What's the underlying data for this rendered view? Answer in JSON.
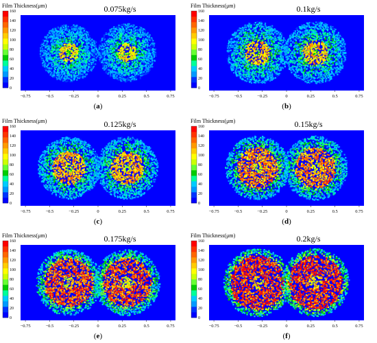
{
  "chart_data": [
    {
      "type": "heatmap",
      "title": "0.075kg/s",
      "caption_letter": "a",
      "colorbar_label": "Film Thickness(μm)",
      "colorbar_ticks": [
        0,
        20,
        40,
        60,
        80,
        100,
        120,
        140,
        160
      ],
      "x_ticks": [
        -0.75,
        -0.5,
        -0.25,
        0,
        0.25,
        0.5,
        0.75
      ],
      "x_tick_labels": [
        "−0.75",
        "−0.5",
        "−0.25",
        "0",
        "0.25",
        "0.5",
        "0.75"
      ],
      "xlim": [
        -0.8,
        0.8
      ],
      "spray_centers": [
        -0.3,
        0.3
      ],
      "spray_radius": 0.3,
      "core_radius": 0.1,
      "core_thickness": 100,
      "edge_thickness": 25
    },
    {
      "type": "heatmap",
      "title": "0.1kg/s",
      "caption_letter": "b",
      "colorbar_label": "Film Thickness(μm)",
      "colorbar_ticks": [
        0,
        20,
        40,
        60,
        80,
        100,
        120,
        140,
        160
      ],
      "x_ticks": [
        -0.75,
        -0.5,
        -0.25,
        0,
        0.25,
        0.5,
        0.75
      ],
      "x_tick_labels": [
        "−0.75",
        "−0.5",
        "−0.25",
        "0",
        "0.25",
        "0.5",
        "0.75"
      ],
      "xlim": [
        -0.8,
        0.8
      ],
      "spray_centers": [
        -0.3,
        0.3
      ],
      "spray_radius": 0.32,
      "core_radius": 0.13,
      "core_thickness": 110,
      "edge_thickness": 30
    },
    {
      "type": "heatmap",
      "title": "0.125kg/s",
      "caption_letter": "c",
      "colorbar_label": "Film Thickness(μm)",
      "colorbar_ticks": [
        0,
        20,
        40,
        60,
        80,
        100,
        120,
        140,
        160
      ],
      "x_ticks": [
        -0.75,
        -0.5,
        -0.25,
        0,
        0.25,
        0.5,
        0.75
      ],
      "x_tick_labels": [
        "−0.75",
        "−0.5",
        "−0.25",
        "0",
        "0.25",
        "0.5",
        "0.75"
      ],
      "xlim": [
        -0.8,
        0.8
      ],
      "spray_centers": [
        -0.3,
        0.3
      ],
      "spray_radius": 0.32,
      "core_radius": 0.17,
      "core_thickness": 115,
      "edge_thickness": 32
    },
    {
      "type": "heatmap",
      "title": "0.15kg/s",
      "caption_letter": "d",
      "colorbar_label": "Film Thickness(μm)",
      "colorbar_ticks": [
        0,
        20,
        40,
        60,
        80,
        100,
        120,
        140,
        160
      ],
      "x_ticks": [
        -0.75,
        -0.5,
        -0.25,
        0,
        0.25,
        0.5,
        0.75
      ],
      "x_tick_labels": [
        "−0.75",
        "−0.5",
        "−0.25",
        "0",
        "0.25",
        "0.5",
        "0.75"
      ],
      "xlim": [
        -0.8,
        0.8
      ],
      "spray_centers": [
        -0.3,
        0.3
      ],
      "spray_radius": 0.33,
      "core_radius": 0.21,
      "core_thickness": 125,
      "edge_thickness": 35
    },
    {
      "type": "heatmap",
      "title": "0.175kg/s",
      "caption_letter": "e",
      "colorbar_label": "Film Thickness(μm)",
      "colorbar_ticks": [
        0,
        20,
        40,
        60,
        80,
        100,
        120,
        140,
        160
      ],
      "x_ticks": [
        -0.75,
        -0.5,
        -0.25,
        0,
        0.25,
        0.5,
        0.75
      ],
      "x_tick_labels": [
        "−0.75",
        "−0.5",
        "−0.25",
        "0",
        "0.25",
        "0.5",
        "0.75"
      ],
      "xlim": [
        -0.8,
        0.8
      ],
      "spray_centers": [
        -0.3,
        0.3
      ],
      "spray_radius": 0.34,
      "core_radius": 0.25,
      "core_thickness": 135,
      "edge_thickness": 40
    },
    {
      "type": "heatmap",
      "title": "0.2kg/s",
      "caption_letter": "f",
      "colorbar_label": "Film Thickness(μm)",
      "colorbar_ticks": [
        0,
        20,
        40,
        60,
        80,
        100,
        120,
        140,
        160
      ],
      "x_ticks": [
        -0.75,
        -0.5,
        -0.25,
        0,
        0.25,
        0.5,
        0.75
      ],
      "x_tick_labels": [
        "−0.75",
        "−0.5",
        "−0.25",
        "0",
        "0.25",
        "0.5",
        "0.75"
      ],
      "xlim": [
        -0.8,
        0.8
      ],
      "spray_centers": [
        -0.3,
        0.3
      ],
      "spray_radius": 0.35,
      "core_radius": 0.28,
      "core_thickness": 145,
      "edge_thickness": 45
    }
  ],
  "colorscale": [
    "#0000ff",
    "#0033ff",
    "#0099ff",
    "#00ccff",
    "#00ff99",
    "#00cc00",
    "#66ff33",
    "#ccff00",
    "#ffff00",
    "#ffcc00",
    "#ff9900",
    "#ff6600",
    "#ff3300",
    "#ff0000"
  ],
  "background_color": "#0000ff"
}
